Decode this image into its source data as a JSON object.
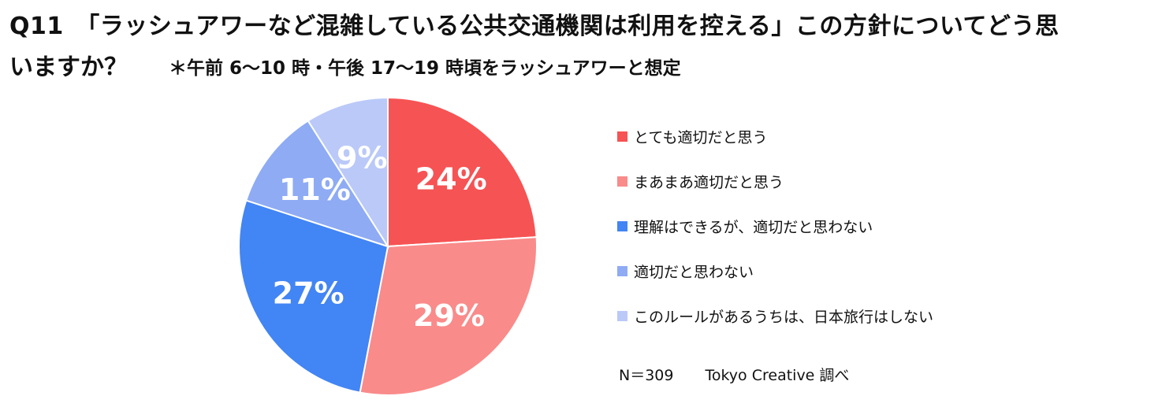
{
  "title": {
    "line1": "Q11　「ラッシュアワーなど混雑している公共交通機関は利用を控える」この方針についてどう思",
    "line2": "いますか？",
    "subtitle": "＊午前 6～10 時・午後 17～19 時頃をラッシュアワーと想定"
  },
  "chart_data": {
    "type": "pie",
    "start_angle_deg": 0,
    "direction": "clockwise",
    "categories": [
      "とても適切だと思う",
      "まあまあ適切だと思う",
      "理解はできるが、適切だと思わない",
      "適切だと思わない",
      "このルールがあるうちは、日本旅行はしない"
    ],
    "values": [
      24,
      29,
      27,
      11,
      9
    ],
    "data_labels": [
      "24%",
      "29%",
      "27%",
      "11%",
      "9%"
    ],
    "colors": [
      "#f65354",
      "#f98b8a",
      "#4285f4",
      "#8eabf4",
      "#bac9f8"
    ],
    "legend_position": "right"
  },
  "footnote": {
    "sample": "N＝309",
    "source": "Tokyo Creative  調べ"
  }
}
